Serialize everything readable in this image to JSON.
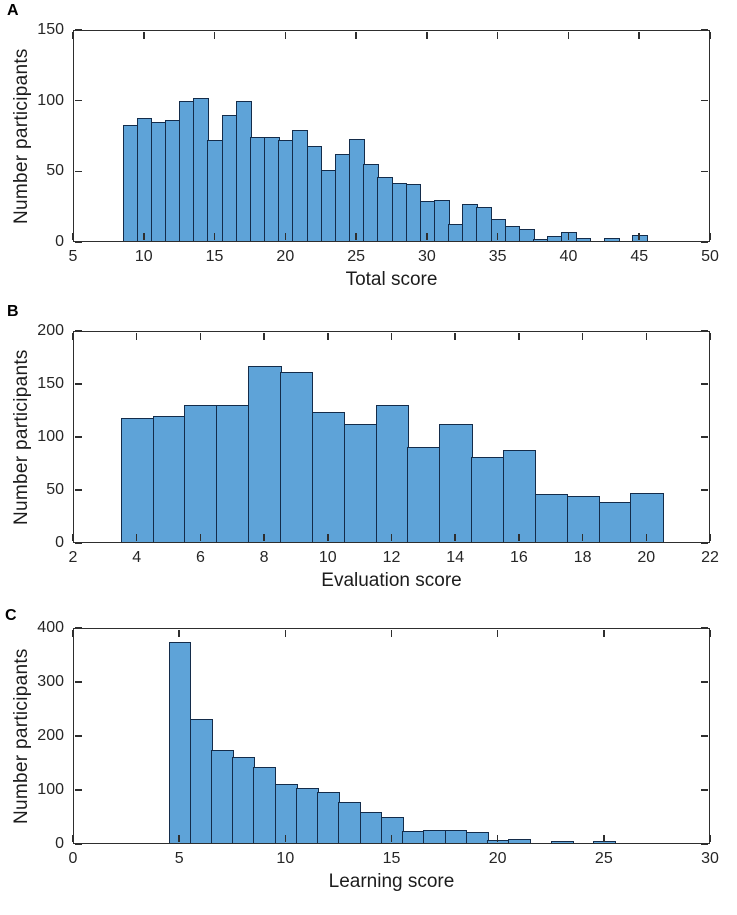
{
  "figure": {
    "background": "#ffffff",
    "bar_fill": "#5ea3d8",
    "bar_edge": "#142c4a",
    "axis_color": "#2e2e2e",
    "text_color": "#262626"
  },
  "chart_data": [
    {
      "type": "bar",
      "subtype": "histogram",
      "panel": "A",
      "xlabel": "Total score",
      "ylabel": "Number participants",
      "xlim": [
        5,
        50
      ],
      "ylim": [
        0,
        150
      ],
      "xticks": [
        5,
        10,
        15,
        20,
        25,
        30,
        35,
        40,
        45,
        50
      ],
      "yticks": [
        0,
        50,
        100,
        150
      ],
      "bin_start": 8.5,
      "bin_width": 1,
      "values": [
        83,
        88,
        85,
        86,
        100,
        102,
        72,
        90,
        100,
        74,
        74,
        72,
        79,
        68,
        51,
        62,
        73,
        55,
        46,
        42,
        41,
        29,
        30,
        13,
        27,
        25,
        16,
        11,
        9,
        2,
        4,
        7,
        3,
        1,
        3,
        1,
        5
      ],
      "grid": false,
      "legend": null
    },
    {
      "type": "bar",
      "subtype": "histogram",
      "panel": "B",
      "xlabel": "Evaluation score",
      "ylabel": "Number participants",
      "xlim": [
        2,
        22
      ],
      "ylim": [
        0,
        200
      ],
      "xticks": [
        2,
        4,
        6,
        8,
        10,
        12,
        14,
        16,
        18,
        20,
        22
      ],
      "yticks": [
        0,
        50,
        100,
        150,
        200
      ],
      "bin_start": 3.5,
      "bin_width": 1,
      "values": [
        118,
        120,
        130,
        130,
        167,
        161,
        124,
        112,
        130,
        91,
        112,
        81,
        88,
        46,
        44,
        39,
        47
      ],
      "grid": false,
      "legend": null
    },
    {
      "type": "bar",
      "subtype": "histogram",
      "panel": "C",
      "xlabel": "Learning score",
      "ylabel": "Number participants",
      "xlim": [
        0,
        30
      ],
      "ylim": [
        0,
        400
      ],
      "xticks": [
        0,
        5,
        10,
        15,
        20,
        25,
        30
      ],
      "yticks": [
        0,
        100,
        200,
        300,
        400
      ],
      "bin_start": 4.5,
      "bin_width": 1,
      "values": [
        375,
        232,
        174,
        162,
        143,
        112,
        103,
        97,
        77,
        60,
        50,
        24,
        26,
        26,
        22,
        8,
        10,
        2,
        5,
        1,
        6
      ],
      "grid": false,
      "legend": null
    }
  ]
}
